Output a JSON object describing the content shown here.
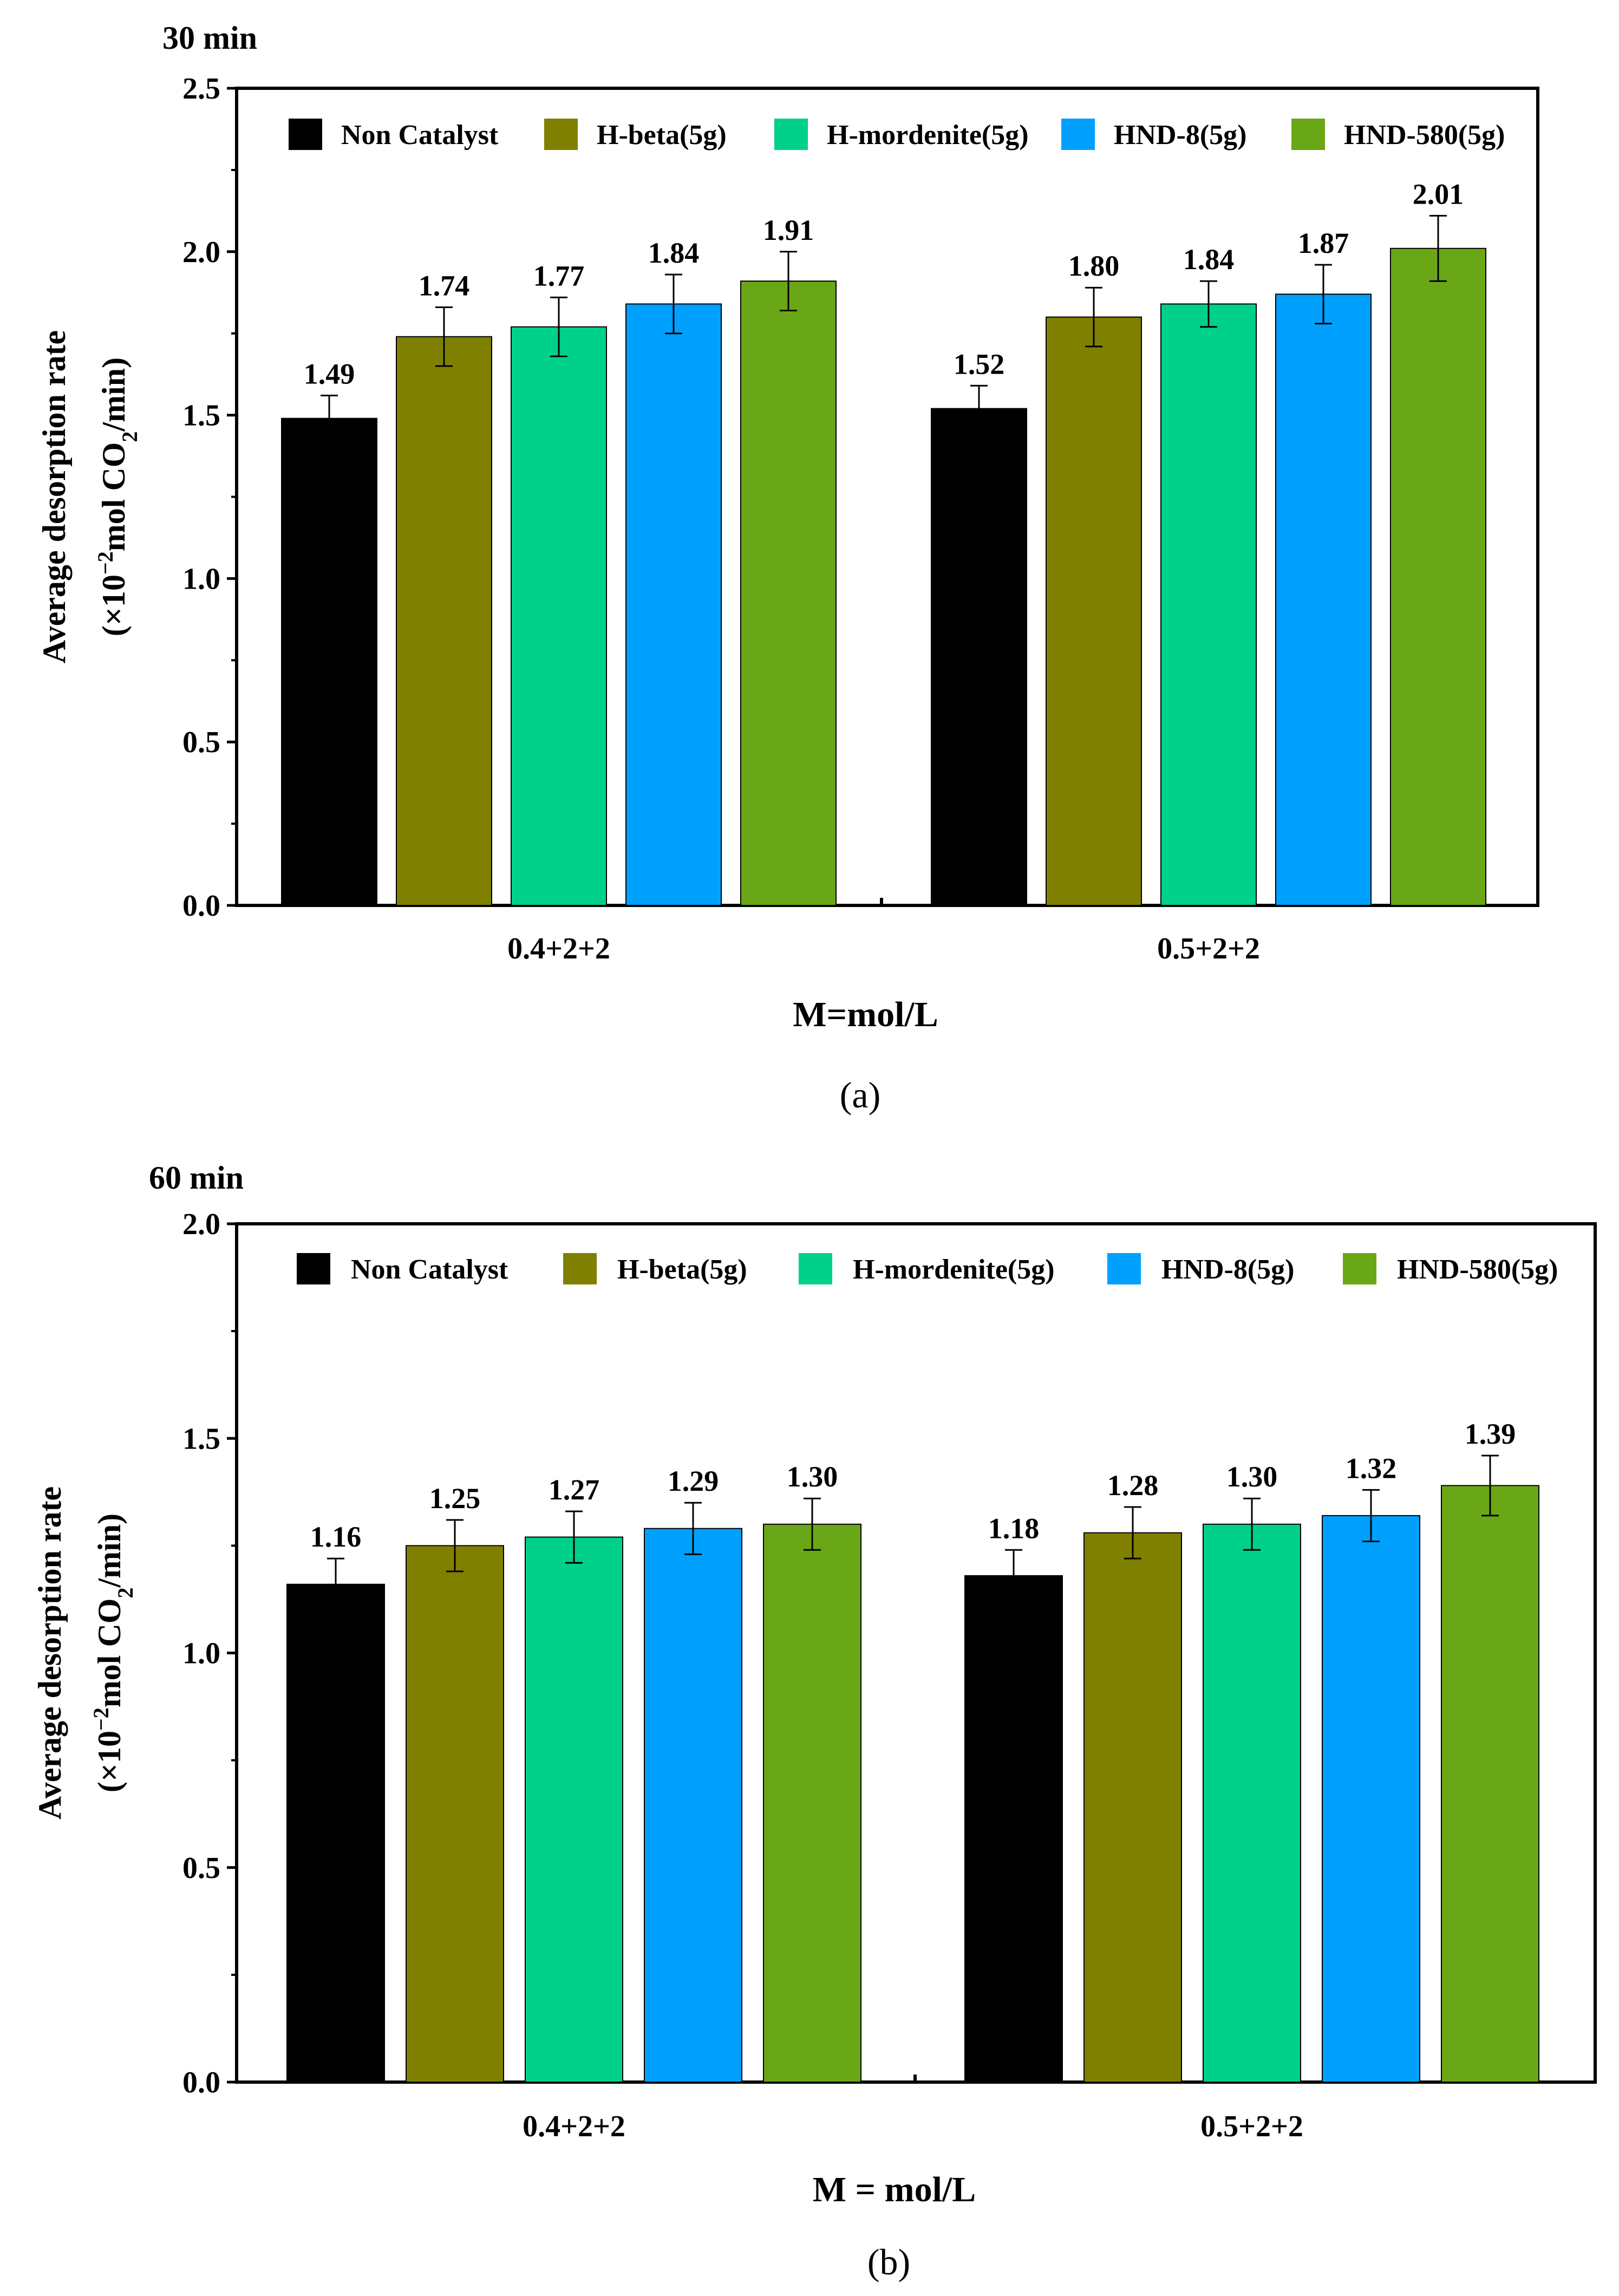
{
  "chart_data": [
    {
      "type": "bar",
      "panel_label": "(a)",
      "title": "30 min",
      "xlabel": "M=mol/L",
      "ylabel_line1": "Average desorption rate",
      "ylabel_line2_parts": [
        "(×10",
        "−2",
        "mol CO",
        "2",
        "/min)"
      ],
      "ylim": [
        0,
        2.5
      ],
      "yticks": [
        "0.0",
        "0.5",
        "1.0",
        "1.5",
        "2.0",
        "2.5"
      ],
      "categories": [
        "0.4+2+2",
        "0.5+2+2"
      ],
      "series": [
        {
          "name": "Non Catalyst",
          "color": "#000000",
          "values": [
            1.49,
            1.52
          ],
          "labels": [
            "1.49",
            "1.52"
          ],
          "errors": [
            0.07,
            0.07
          ]
        },
        {
          "name": "H-beta(5g)",
          "color": "#808000",
          "values": [
            1.74,
            1.8
          ],
          "labels": [
            "1.74",
            "1.80"
          ],
          "errors": [
            0.09,
            0.09
          ]
        },
        {
          "name": "H-mordenite(5g)",
          "color": "#00D18A",
          "values": [
            1.77,
            1.84
          ],
          "labels": [
            "1.77",
            "1.84"
          ],
          "errors": [
            0.09,
            0.07
          ]
        },
        {
          "name": "HND-8(5g)",
          "color": "#00A0FF",
          "values": [
            1.84,
            1.87
          ],
          "labels": [
            "1.84",
            "1.87"
          ],
          "errors": [
            0.09,
            0.09
          ]
        },
        {
          "name": "HND-580(5g)",
          "color": "#6AA716",
          "values": [
            1.91,
            2.01
          ],
          "labels": [
            "1.91",
            "2.01"
          ],
          "errors": [
            0.09,
            0.1
          ]
        }
      ],
      "legend_position": "top"
    },
    {
      "type": "bar",
      "panel_label": "(b)",
      "title": "60 min",
      "xlabel": "M = mol/L",
      "ylabel_line1": "Average desorption rate",
      "ylabel_line2_parts": [
        "(×10",
        "−2",
        "mol CO",
        "2",
        "/min)"
      ],
      "ylim": [
        0,
        2.0
      ],
      "yticks": [
        "0.0",
        "0.5",
        "1.0",
        "1.5",
        "2.0"
      ],
      "categories": [
        "0.4+2+2",
        "0.5+2+2"
      ],
      "series": [
        {
          "name": "Non Catalyst",
          "color": "#000000",
          "values": [
            1.16,
            1.18
          ],
          "labels": [
            "1.16",
            "1.18"
          ],
          "errors": [
            0.06,
            0.06
          ]
        },
        {
          "name": "H-beta(5g)",
          "color": "#808000",
          "values": [
            1.25,
            1.28
          ],
          "labels": [
            "1.25",
            "1.28"
          ],
          "errors": [
            0.06,
            0.06
          ]
        },
        {
          "name": "H-mordenite(5g)",
          "color": "#00D18A",
          "values": [
            1.27,
            1.3
          ],
          "labels": [
            "1.27",
            "1.30"
          ],
          "errors": [
            0.06,
            0.06
          ]
        },
        {
          "name": "HND-8(5g)",
          "color": "#00A0FF",
          "values": [
            1.29,
            1.32
          ],
          "labels": [
            "1.29",
            "1.32"
          ],
          "errors": [
            0.06,
            0.06
          ]
        },
        {
          "name": "HND-580(5g)",
          "color": "#6AA716",
          "values": [
            1.3,
            1.39
          ],
          "labels": [
            "1.30",
            "1.39"
          ],
          "errors": [
            0.06,
            0.07
          ]
        }
      ],
      "legend_position": "top"
    }
  ]
}
